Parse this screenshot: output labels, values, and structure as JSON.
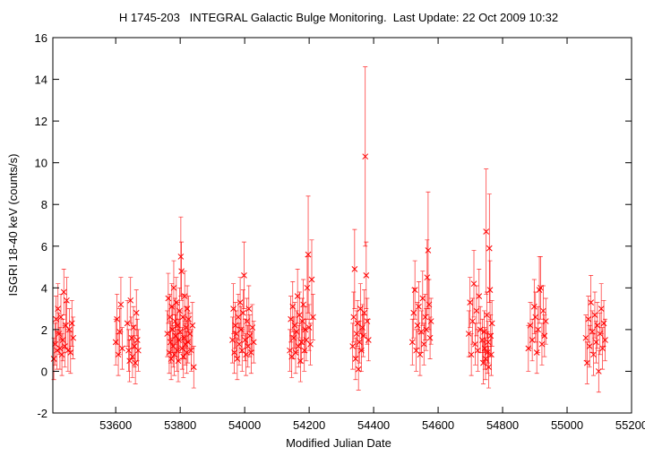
{
  "chart_data": {
    "type": "scatter",
    "title": "H 1745-203   INTEGRAL Galactic Bulge Monitoring.  Last Update: 22 Oct 2009 10:32",
    "xlabel": "Modified Julian Date",
    "ylabel": "ISGRI 18-40 keV (counts/s)",
    "xlim": [
      53405,
      55200
    ],
    "ylim": [
      -2,
      16
    ],
    "xticks": [
      53600,
      53800,
      54000,
      54200,
      54400,
      54600,
      54800,
      55000,
      55200
    ],
    "yticks": [
      -2,
      0,
      2,
      4,
      6,
      8,
      10,
      12,
      14,
      16
    ],
    "grid": false,
    "legend": "none",
    "colors": {
      "series": "#ff0000",
      "axes": "#000000",
      "background": "#ffffff"
    },
    "marker": "x-cross with vertical error bars",
    "series": [
      {
        "points": [
          [
            53408,
            0.6,
            1.0
          ],
          [
            53412,
            1.3,
            1.0
          ],
          [
            53415,
            2.5,
            1.1
          ],
          [
            53418,
            1.0,
            0.9
          ],
          [
            53421,
            3.0,
            1.2
          ],
          [
            53424,
            1.8,
            1.0
          ],
          [
            53427,
            1.1,
            1.0
          ],
          [
            53430,
            2.6,
            1.1
          ],
          [
            53433,
            0.8,
            1.0
          ],
          [
            53436,
            1.5,
            1.0
          ],
          [
            53439,
            3.8,
            1.1
          ],
          [
            53442,
            1.2,
            1.0
          ],
          [
            53445,
            2.2,
            1.1
          ],
          [
            53448,
            3.4,
            1.1
          ],
          [
            53452,
            1.0,
            1.0
          ],
          [
            53456,
            2.0,
            1.0
          ],
          [
            53460,
            0.9,
            1.0
          ],
          [
            53464,
            2.3,
            1.1
          ],
          [
            53468,
            1.6,
            1.0
          ],
          [
            53600,
            1.4,
            1.1
          ],
          [
            53604,
            2.5,
            1.2
          ],
          [
            53608,
            0.8,
            1.0
          ],
          [
            53612,
            1.9,
            1.1
          ],
          [
            53616,
            3.2,
            1.3
          ],
          [
            53620,
            1.1,
            1.0
          ],
          [
            53636,
            2.3,
            1.1
          ],
          [
            53640,
            1.0,
            1.0
          ],
          [
            53643,
            0.5,
            1.0
          ],
          [
            53646,
            3.4,
            1.1
          ],
          [
            53649,
            1.6,
            1.0
          ],
          [
            53652,
            0.7,
            1.0
          ],
          [
            53655,
            2.1,
            1.0
          ],
          [
            53658,
            1.2,
            1.0
          ],
          [
            53661,
            0.4,
            1.0
          ],
          [
            53664,
            2.8,
            1.1
          ],
          [
            53667,
            1.5,
            1.0
          ],
          [
            53670,
            1.0,
            1.0
          ],
          [
            53760,
            1.8,
            1.1
          ],
          [
            53763,
            3.5,
            1.2
          ],
          [
            53766,
            0.9,
            1.0
          ],
          [
            53768,
            2.6,
            1.1
          ],
          [
            53770,
            1.4,
            1.0
          ],
          [
            53772,
            0.6,
            1.0
          ],
          [
            53774,
            3.1,
            1.1
          ],
          [
            53776,
            2.0,
            1.1
          ],
          [
            53778,
            1.2,
            1.0
          ],
          [
            53780,
            4.0,
            1.3
          ],
          [
            53782,
            0.8,
            1.0
          ],
          [
            53784,
            2.4,
            1.1
          ],
          [
            53786,
            1.7,
            1.0
          ],
          [
            53788,
            3.3,
            1.2
          ],
          [
            53790,
            1.0,
            1.0
          ],
          [
            53792,
            2.2,
            1.1
          ],
          [
            53794,
            0.5,
            1.0
          ],
          [
            53796,
            1.5,
            1.0
          ],
          [
            53798,
            2.9,
            1.1
          ],
          [
            53800,
            1.9,
            1.0
          ],
          [
            53802,
            5.5,
            1.9
          ],
          [
            53804,
            4.8,
            1.4
          ],
          [
            53806,
            1.1,
            1.0
          ],
          [
            53808,
            2.6,
            1.1
          ],
          [
            53810,
            0.7,
            1.0
          ],
          [
            53812,
            1.6,
            1.0
          ],
          [
            53814,
            3.6,
            1.2
          ],
          [
            53816,
            1.3,
            1.0
          ],
          [
            53818,
            2.1,
            1.0
          ],
          [
            53820,
            0.9,
            1.0
          ],
          [
            53822,
            3.0,
            1.1
          ],
          [
            53824,
            1.4,
            1.0
          ],
          [
            53826,
            2.5,
            1.1
          ],
          [
            53830,
            1.8,
            1.0
          ],
          [
            53834,
            1.0,
            1.0
          ],
          [
            53838,
            2.2,
            1.1
          ],
          [
            53842,
            0.2,
            1.0
          ],
          [
            53962,
            1.5,
            1.1
          ],
          [
            53965,
            3.0,
            1.2
          ],
          [
            53968,
            0.9,
            1.0
          ],
          [
            53971,
            2.2,
            1.1
          ],
          [
            53974,
            1.8,
            1.1
          ],
          [
            53977,
            0.6,
            1.0
          ],
          [
            53980,
            2.6,
            1.1
          ],
          [
            53983,
            1.3,
            1.0
          ],
          [
            53986,
            3.3,
            1.2
          ],
          [
            53989,
            2.0,
            1.1
          ],
          [
            53992,
            1.0,
            1.0
          ],
          [
            53995,
            2.8,
            1.1
          ],
          [
            53998,
            4.6,
            1.6
          ],
          [
            54001,
            1.5,
            1.0
          ],
          [
            54004,
            0.8,
            1.0
          ],
          [
            54007,
            2.4,
            1.1
          ],
          [
            54010,
            1.2,
            1.0
          ],
          [
            54013,
            3.0,
            1.1
          ],
          [
            54016,
            1.7,
            1.0
          ],
          [
            54020,
            0.9,
            1.0
          ],
          [
            54024,
            2.1,
            1.1
          ],
          [
            54028,
            1.4,
            1.0
          ],
          [
            54140,
            1.0,
            1.0
          ],
          [
            54143,
            2.5,
            1.1
          ],
          [
            54146,
            0.7,
            1.0
          ],
          [
            54149,
            3.1,
            1.2
          ],
          [
            54152,
            1.6,
            1.0
          ],
          [
            54155,
            2.2,
            1.1
          ],
          [
            54158,
            0.9,
            1.0
          ],
          [
            54161,
            1.9,
            1.0
          ],
          [
            54164,
            3.6,
            1.3
          ],
          [
            54167,
            1.2,
            1.0
          ],
          [
            54170,
            2.7,
            1.1
          ],
          [
            54173,
            0.5,
            1.0
          ],
          [
            54176,
            1.4,
            1.0
          ],
          [
            54179,
            2.4,
            1.1
          ],
          [
            54182,
            3.2,
            1.2
          ],
          [
            54185,
            1.0,
            1.0
          ],
          [
            54188,
            2.0,
            1.1
          ],
          [
            54191,
            1.5,
            1.0
          ],
          [
            54194,
            4.0,
            1.5
          ],
          [
            54197,
            5.6,
            2.8
          ],
          [
            54200,
            2.1,
            1.1
          ],
          [
            54204,
            1.3,
            1.0
          ],
          [
            54208,
            4.4,
            1.9
          ],
          [
            54212,
            2.6,
            1.1
          ],
          [
            54335,
            1.2,
            1.1
          ],
          [
            54338,
            2.6,
            1.2
          ],
          [
            54341,
            4.9,
            1.9
          ],
          [
            54344,
            0.6,
            1.0
          ],
          [
            54347,
            1.8,
            1.1
          ],
          [
            54350,
            2.3,
            1.1
          ],
          [
            54353,
            0.1,
            1.0
          ],
          [
            54356,
            1.4,
            1.0
          ],
          [
            54359,
            3.0,
            1.2
          ],
          [
            54362,
            1.0,
            1.0
          ],
          [
            54365,
            2.1,
            1.1
          ],
          [
            54368,
            1.7,
            1.0
          ],
          [
            54371,
            2.8,
            1.1
          ],
          [
            54374,
            10.3,
            4.3
          ],
          [
            54377,
            4.6,
            1.6
          ],
          [
            54380,
            2.4,
            1.1
          ],
          [
            54384,
            1.5,
            1.0
          ],
          [
            54520,
            1.4,
            1.1
          ],
          [
            54524,
            2.8,
            1.2
          ],
          [
            54528,
            3.9,
            1.4
          ],
          [
            54532,
            1.0,
            1.0
          ],
          [
            54536,
            2.2,
            1.1
          ],
          [
            54540,
            3.1,
            1.2
          ],
          [
            54544,
            0.8,
            1.0
          ],
          [
            54548,
            1.9,
            1.0
          ],
          [
            54552,
            3.5,
            1.3
          ],
          [
            54556,
            1.3,
            1.0
          ],
          [
            54560,
            2.6,
            1.1
          ],
          [
            54563,
            2.0,
            1.0
          ],
          [
            54566,
            4.5,
            1.8
          ],
          [
            54569,
            5.8,
            2.8
          ],
          [
            54572,
            3.2,
            1.2
          ],
          [
            54575,
            1.6,
            1.0
          ],
          [
            54578,
            2.4,
            1.1
          ],
          [
            54695,
            1.8,
            1.1
          ],
          [
            54699,
            3.3,
            1.2
          ],
          [
            54703,
            0.8,
            1.0
          ],
          [
            54707,
            2.4,
            1.1
          ],
          [
            54711,
            4.2,
            1.6
          ],
          [
            54715,
            1.3,
            1.0
          ],
          [
            54719,
            2.9,
            1.2
          ],
          [
            54723,
            1.0,
            1.0
          ],
          [
            54727,
            3.6,
            1.3
          ],
          [
            54731,
            2.0,
            1.1
          ],
          [
            54737,
            1.5,
            1.0
          ],
          [
            54740,
            0.4,
            1.0
          ],
          [
            54743,
            1.9,
            1.0
          ],
          [
            54745,
            1.1,
            1.0
          ],
          [
            54747,
            0.6,
            1.0
          ],
          [
            54749,
            6.7,
            3.0
          ],
          [
            54751,
            2.7,
            1.1
          ],
          [
            54753,
            0.9,
            1.0
          ],
          [
            54755,
            1.4,
            1.0
          ],
          [
            54757,
            0.2,
            1.0
          ],
          [
            54759,
            5.9,
            2.6
          ],
          [
            54761,
            3.9,
            1.4
          ],
          [
            54763,
            1.7,
            1.0
          ],
          [
            54765,
            0.8,
            1.0
          ],
          [
            54767,
            2.3,
            1.1
          ],
          [
            54880,
            1.1,
            1.1
          ],
          [
            54886,
            2.2,
            1.1
          ],
          [
            54892,
            1.5,
            1.0
          ],
          [
            54898,
            3.1,
            1.3
          ],
          [
            54902,
            2.6,
            1.2
          ],
          [
            54906,
            0.9,
            1.0
          ],
          [
            54910,
            2.0,
            1.1
          ],
          [
            54914,
            3.9,
            1.6
          ],
          [
            54918,
            4.0,
            1.5
          ],
          [
            54922,
            1.3,
            1.0
          ],
          [
            54926,
            2.9,
            1.2
          ],
          [
            54930,
            1.7,
            1.0
          ],
          [
            54934,
            2.4,
            1.1
          ],
          [
            55058,
            1.6,
            1.1
          ],
          [
            55062,
            0.4,
            1.0
          ],
          [
            55066,
            2.5,
            1.1
          ],
          [
            55070,
            1.2,
            1.0
          ],
          [
            55074,
            3.3,
            1.3
          ],
          [
            55078,
            1.9,
            1.0
          ],
          [
            55082,
            0.8,
            1.0
          ],
          [
            55086,
            2.7,
            1.1
          ],
          [
            55090,
            1.4,
            1.0
          ],
          [
            55094,
            2.2,
            1.1
          ],
          [
            55098,
            0.0,
            1.0
          ],
          [
            55102,
            1.8,
            1.0
          ],
          [
            55106,
            3.0,
            1.2
          ],
          [
            55110,
            1.1,
            1.0
          ],
          [
            55114,
            2.3,
            1.1
          ],
          [
            55118,
            1.5,
            1.0
          ]
        ]
      }
    ]
  }
}
